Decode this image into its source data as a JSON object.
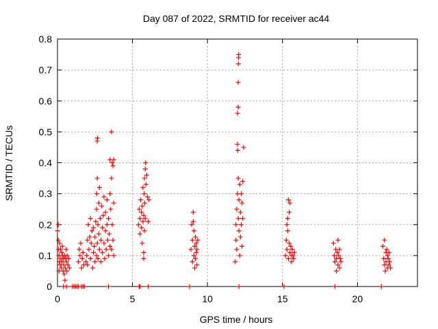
{
  "chart_data": {
    "type": "scatter",
    "title": "Day 087 of 2022, SRMTID for receiver ac44",
    "xlabel": "GPS time / hours",
    "ylabel": "SRMTID / TECUs",
    "xlim": [
      0,
      24
    ],
    "ylim": [
      0,
      0.8
    ],
    "xticks": [
      "0",
      "5",
      "10",
      "15",
      "20"
    ],
    "xtick_values": [
      0,
      5,
      10,
      15,
      20
    ],
    "yticks": [
      "0",
      "0.1",
      "0.2",
      "0.3",
      "0.4",
      "0.5",
      "0.6",
      "0.7",
      "0.8"
    ],
    "ytick_values": [
      0,
      0.1,
      0.2,
      0.3,
      0.4,
      0.5,
      0.6,
      0.7,
      0.8
    ],
    "grid": true,
    "marker": "+",
    "color": "#ff0000",
    "series": [
      {
        "points": [
          [
            0.0,
            0.18
          ],
          [
            0.05,
            0.2
          ],
          [
            0.05,
            0.15
          ],
          [
            0.08,
            0.12
          ],
          [
            0.1,
            0.1
          ],
          [
            0.1,
            0.05
          ],
          [
            0.12,
            0.08
          ],
          [
            0.15,
            0.14
          ],
          [
            0.18,
            0.07
          ],
          [
            0.2,
            0.12
          ],
          [
            0.22,
            0.09
          ],
          [
            0.25,
            0.06
          ],
          [
            0.28,
            0.11
          ],
          [
            0.3,
            0.08
          ],
          [
            0.32,
            0.13
          ],
          [
            0.35,
            0.1
          ],
          [
            0.38,
            0.05
          ],
          [
            0.4,
            0.09
          ],
          [
            0.42,
            0.07
          ],
          [
            0.45,
            0.04
          ],
          [
            0.48,
            0.1
          ],
          [
            0.5,
            0.02
          ],
          [
            0.52,
            0.06
          ],
          [
            0.55,
            0.09
          ],
          [
            0.58,
            0.12
          ],
          [
            0.6,
            0.08
          ],
          [
            0.62,
            0.05
          ],
          [
            0.65,
            0.1
          ],
          [
            0.7,
            0.07
          ],
          [
            0.75,
            0.09
          ],
          [
            0.8,
            0.06
          ],
          [
            0.4,
            0.0
          ],
          [
            0.6,
            0.0
          ],
          [
            1.0,
            0.0
          ],
          [
            1.1,
            0.0
          ],
          [
            1.2,
            0.0
          ],
          [
            1.3,
            0.0
          ],
          [
            1.4,
            0.0
          ],
          [
            1.6,
            0.0
          ],
          [
            1.7,
            0.0
          ],
          [
            1.8,
            0.0
          ],
          [
            1.4,
            0.08
          ],
          [
            1.45,
            0.12
          ],
          [
            1.5,
            0.1
          ],
          [
            1.55,
            0.14
          ],
          [
            1.6,
            0.06
          ],
          [
            1.65,
            0.09
          ],
          [
            1.7,
            0.11
          ],
          [
            1.75,
            0.07
          ],
          [
            1.9,
            0.08
          ],
          [
            1.95,
            0.1
          ],
          [
            2.0,
            0.07
          ],
          [
            2.0,
            0.15
          ],
          [
            2.05,
            0.2
          ],
          [
            2.1,
            0.12
          ],
          [
            2.15,
            0.16
          ],
          [
            2.2,
            0.09
          ],
          [
            2.2,
            0.22
          ],
          [
            2.25,
            0.14
          ],
          [
            2.3,
            0.18
          ],
          [
            2.35,
            0.06
          ],
          [
            2.4,
            0.11
          ],
          [
            2.4,
            0.19
          ],
          [
            2.45,
            0.13
          ],
          [
            2.5,
            0.08
          ],
          [
            2.5,
            0.16
          ],
          [
            2.55,
            0.21
          ],
          [
            2.6,
            0.1
          ],
          [
            2.6,
            0.25
          ],
          [
            2.62,
            0.3
          ],
          [
            2.65,
            0.35
          ],
          [
            2.65,
            0.14
          ],
          [
            2.7,
            0.2
          ],
          [
            2.7,
            0.09
          ],
          [
            2.75,
            0.17
          ],
          [
            2.75,
            0.27
          ],
          [
            2.8,
            0.12
          ],
          [
            2.8,
            0.32
          ],
          [
            2.85,
            0.22
          ],
          [
            2.9,
            0.08
          ],
          [
            2.9,
            0.15
          ],
          [
            2.95,
            0.26
          ],
          [
            3.0,
            0.11
          ],
          [
            3.0,
            0.19
          ],
          [
            3.05,
            0.23
          ],
          [
            3.1,
            0.14
          ],
          [
            3.1,
            0.29
          ],
          [
            3.15,
            0.09
          ],
          [
            3.2,
            0.18
          ],
          [
            3.2,
            0.24
          ],
          [
            3.25,
            0.12
          ],
          [
            3.3,
            0.2
          ],
          [
            3.3,
            0.28
          ],
          [
            3.35,
            0.15
          ],
          [
            3.4,
            0.1
          ],
          [
            3.4,
            0.22
          ],
          [
            3.45,
            0.17
          ],
          [
            3.5,
            0.13
          ],
          [
            3.5,
            0.3
          ],
          [
            3.55,
            0.25
          ],
          [
            3.6,
            0.12
          ],
          [
            3.6,
            0.35
          ],
          [
            3.65,
            0.2
          ],
          [
            3.7,
            0.15
          ],
          [
            3.7,
            0.39
          ],
          [
            3.75,
            0.1
          ],
          [
            3.75,
            0.27
          ],
          [
            2.65,
            0.47
          ],
          [
            2.67,
            0.48
          ],
          [
            3.6,
            0.5
          ],
          [
            3.5,
            0.41
          ],
          [
            3.65,
            0.4
          ],
          [
            3.75,
            0.41
          ],
          [
            3.4,
            0.0
          ],
          [
            5.4,
            0.2
          ],
          [
            5.45,
            0.25
          ],
          [
            5.5,
            0.22
          ],
          [
            5.5,
            0.17
          ],
          [
            5.55,
            0.28
          ],
          [
            5.6,
            0.24
          ],
          [
            5.6,
            0.19
          ],
          [
            5.65,
            0.26
          ],
          [
            5.65,
            0.14
          ],
          [
            5.7,
            0.21
          ],
          [
            5.7,
            0.32
          ],
          [
            5.75,
            0.23
          ],
          [
            5.75,
            0.11
          ],
          [
            5.78,
            0.3
          ],
          [
            5.8,
            0.18
          ],
          [
            5.8,
            0.35
          ],
          [
            5.82,
            0.27
          ],
          [
            5.85,
            0.38
          ],
          [
            5.85,
            0.22
          ],
          [
            5.88,
            0.4
          ],
          [
            5.9,
            0.33
          ],
          [
            5.95,
            0.36
          ],
          [
            6.0,
            0.29
          ],
          [
            6.05,
            0.21
          ],
          [
            6.1,
            0.28
          ],
          [
            5.75,
            0.09
          ],
          [
            5.45,
            0.0
          ],
          [
            5.5,
            0.0
          ],
          [
            6.05,
            0.0
          ],
          [
            8.8,
            0.0
          ],
          [
            8.9,
            0.12
          ],
          [
            8.95,
            0.2
          ],
          [
            9.0,
            0.15
          ],
          [
            9.0,
            0.08
          ],
          [
            9.05,
            0.24
          ],
          [
            9.05,
            0.21
          ],
          [
            9.1,
            0.18
          ],
          [
            9.1,
            0.1
          ],
          [
            9.15,
            0.13
          ],
          [
            9.15,
            0.06
          ],
          [
            9.2,
            0.16
          ],
          [
            9.2,
            0.09
          ],
          [
            9.25,
            0.11
          ],
          [
            9.25,
            0.14
          ],
          [
            9.3,
            0.07
          ],
          [
            9.3,
            0.12
          ],
          [
            9.35,
            0.15
          ],
          [
            11.85,
            0.08
          ],
          [
            11.9,
            0.15
          ],
          [
            11.9,
            0.2
          ],
          [
            11.95,
            0.25
          ],
          [
            11.95,
            0.12
          ],
          [
            12.0,
            0.3
          ],
          [
            12.0,
            0.46
          ],
          [
            12.0,
            0.56
          ],
          [
            12.02,
            0.44
          ],
          [
            12.05,
            0.22
          ],
          [
            12.05,
            0.35
          ],
          [
            12.05,
            0.58
          ],
          [
            12.05,
            0.66
          ],
          [
            12.06,
            0.72
          ],
          [
            12.07,
            0.74
          ],
          [
            12.08,
            0.75
          ],
          [
            12.1,
            0.18
          ],
          [
            12.1,
            0.28
          ],
          [
            12.15,
            0.1
          ],
          [
            12.15,
            0.33
          ],
          [
            12.2,
            0.24
          ],
          [
            12.2,
            0.16
          ],
          [
            12.25,
            0.3
          ],
          [
            12.25,
            0.2
          ],
          [
            12.3,
            0.27
          ],
          [
            12.3,
            0.13
          ],
          [
            12.35,
            0.34
          ],
          [
            12.35,
            0.22
          ],
          [
            12.4,
            0.45
          ],
          [
            12.1,
            0.0
          ],
          [
            15.1,
            0.0
          ],
          [
            15.2,
            0.1
          ],
          [
            15.25,
            0.15
          ],
          [
            15.3,
            0.2
          ],
          [
            15.3,
            0.12
          ],
          [
            15.35,
            0.22
          ],
          [
            15.35,
            0.18
          ],
          [
            15.4,
            0.28
          ],
          [
            15.4,
            0.09
          ],
          [
            15.45,
            0.14
          ],
          [
            15.45,
            0.24
          ],
          [
            15.5,
            0.11
          ],
          [
            15.5,
            0.27
          ],
          [
            15.55,
            0.13
          ],
          [
            15.6,
            0.08
          ],
          [
            15.6,
            0.1
          ],
          [
            15.65,
            0.12
          ],
          [
            15.7,
            0.1
          ],
          [
            15.75,
            0.09
          ],
          [
            15.8,
            0.11
          ],
          [
            18.4,
            0.14
          ],
          [
            18.45,
            0.1
          ],
          [
            18.5,
            0.08
          ],
          [
            18.55,
            0.12
          ],
          [
            18.6,
            0.09
          ],
          [
            18.6,
            0.05
          ],
          [
            18.65,
            0.11
          ],
          [
            18.7,
            0.07
          ],
          [
            18.7,
            0.15
          ],
          [
            18.75,
            0.1
          ],
          [
            18.8,
            0.06
          ],
          [
            18.8,
            0.12
          ],
          [
            18.85,
            0.09
          ],
          [
            18.9,
            0.08
          ],
          [
            18.5,
            0.0
          ],
          [
            21.6,
            0.0
          ],
          [
            21.7,
            0.13
          ],
          [
            21.75,
            0.09
          ],
          [
            21.8,
            0.07
          ],
          [
            21.8,
            0.15
          ],
          [
            21.85,
            0.05
          ],
          [
            21.9,
            0.11
          ],
          [
            21.9,
            0.08
          ],
          [
            21.95,
            0.12
          ],
          [
            22.0,
            0.06
          ],
          [
            22.0,
            0.1
          ],
          [
            22.05,
            0.09
          ],
          [
            22.1,
            0.07
          ],
          [
            22.1,
            0.11
          ],
          [
            22.15,
            0.08
          ],
          [
            22.2,
            0.06
          ]
        ]
      }
    ]
  }
}
